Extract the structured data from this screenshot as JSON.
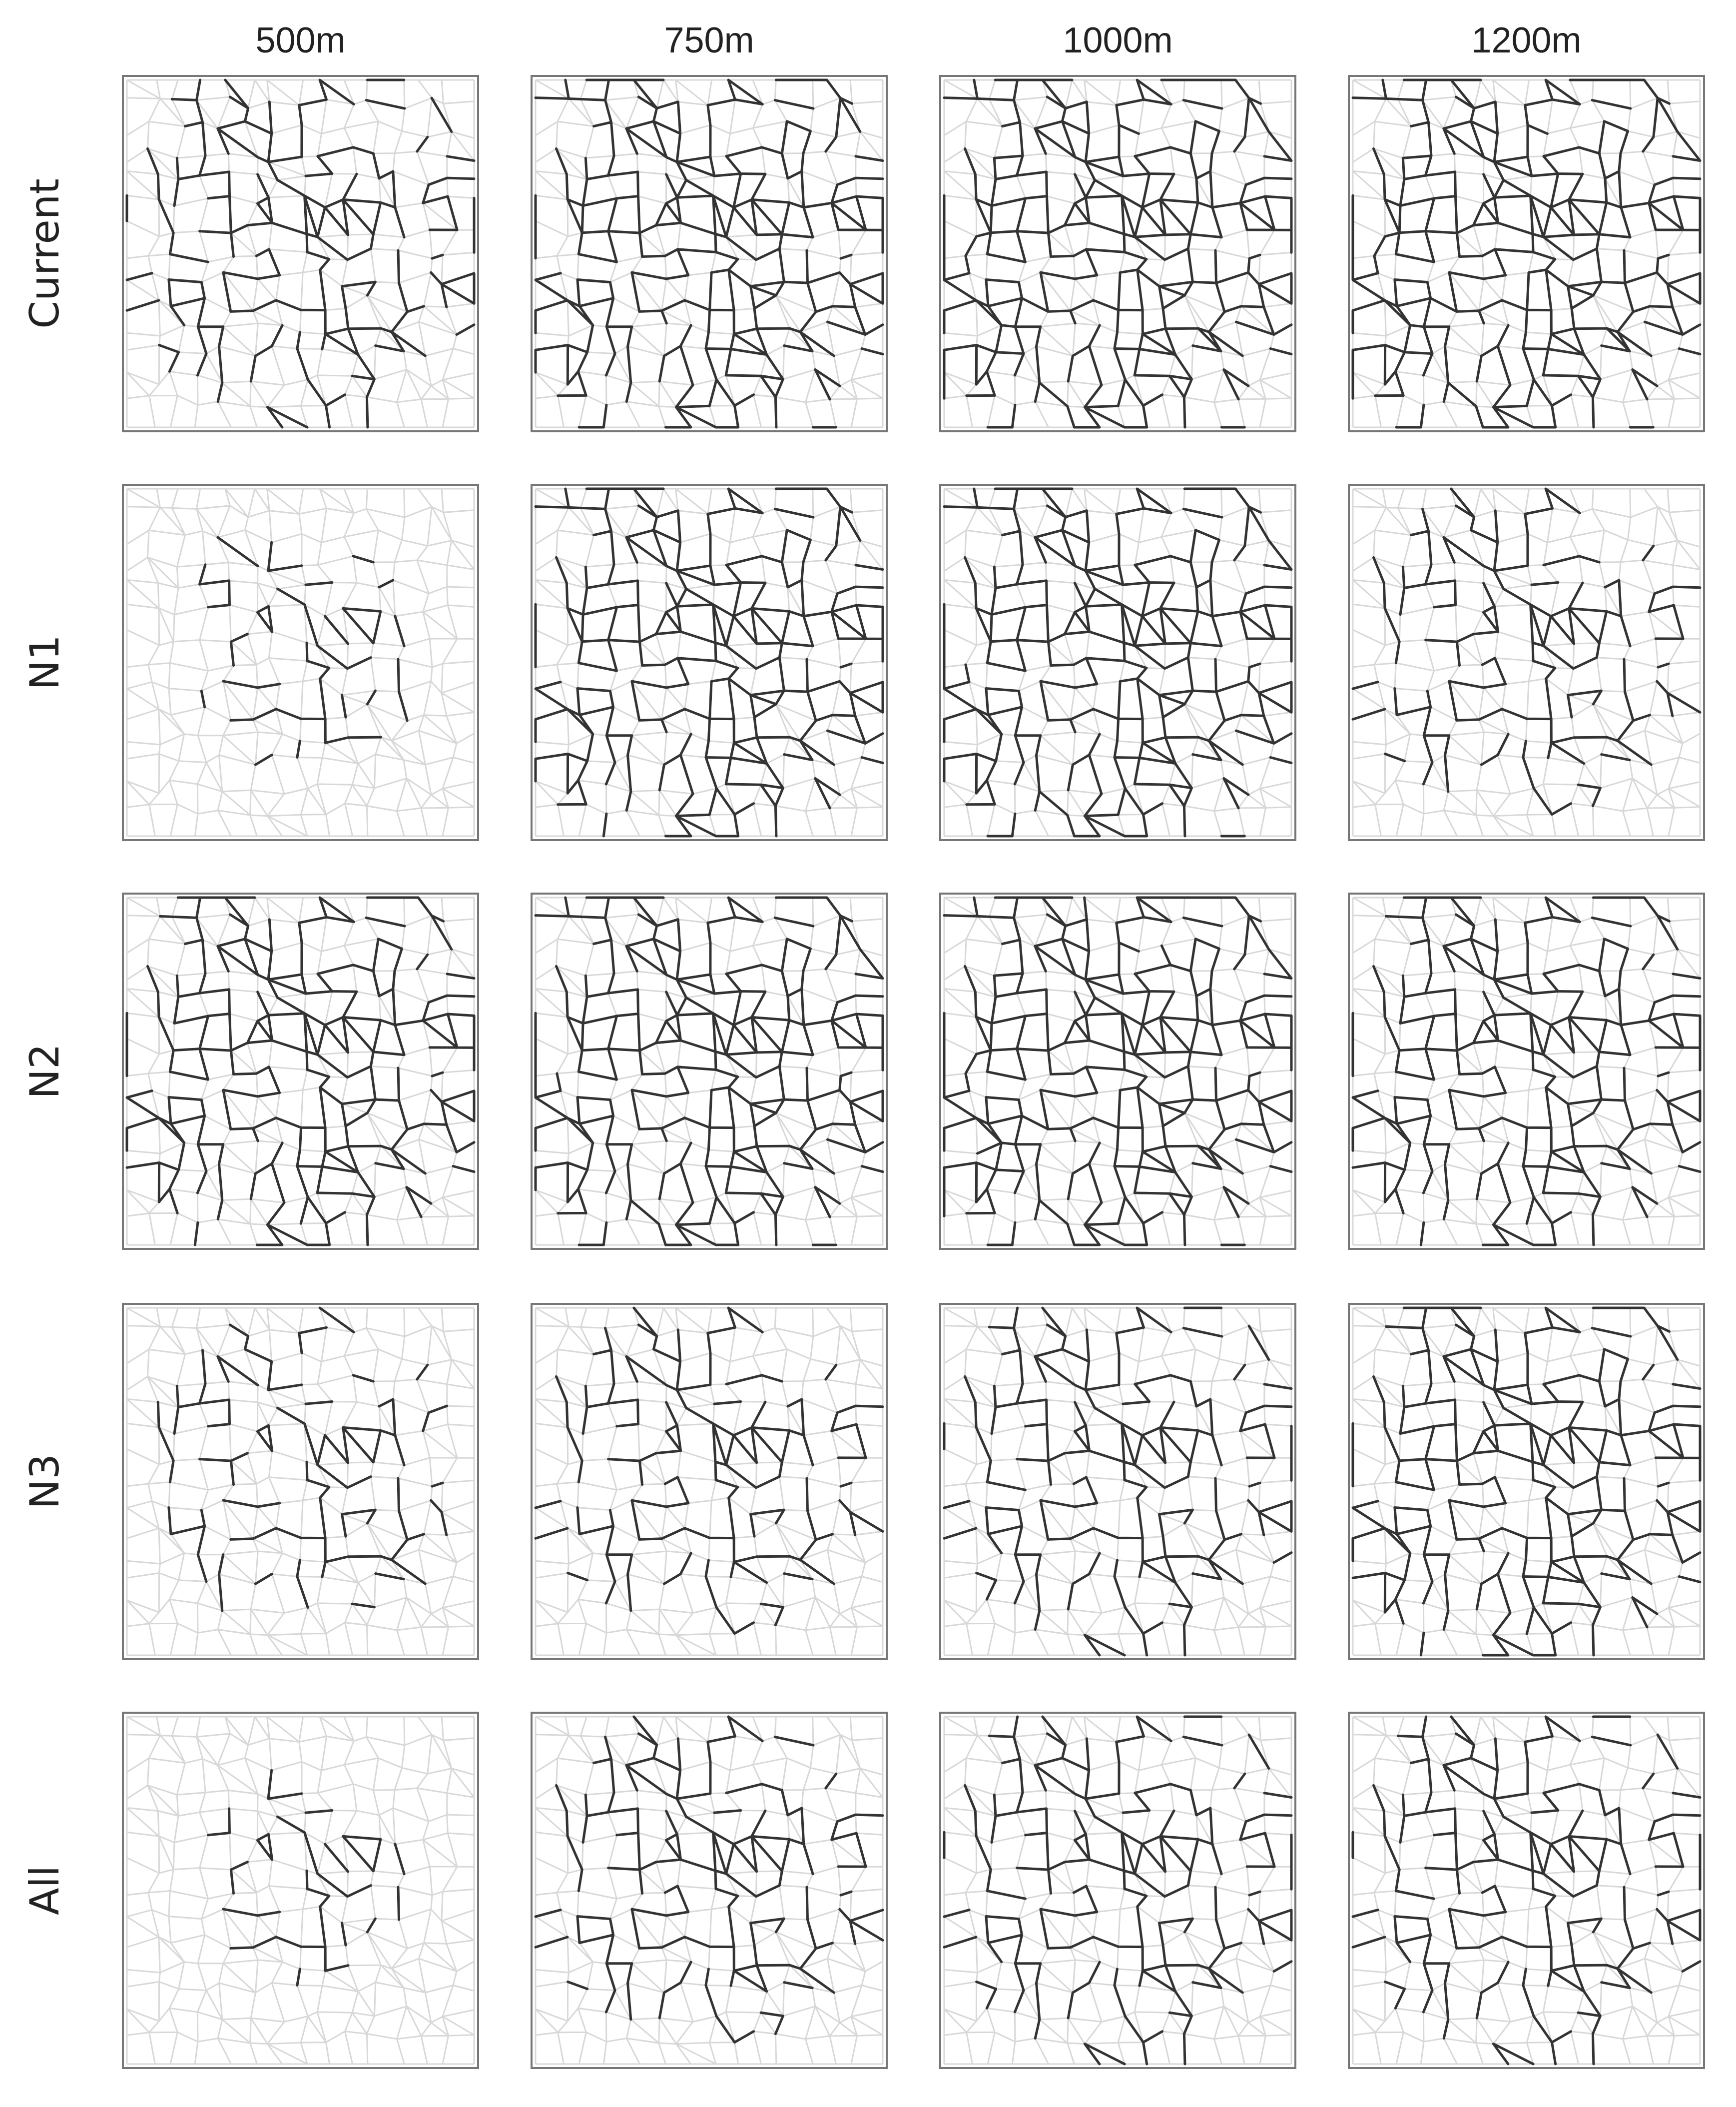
{
  "columns": [
    "500m",
    "750m",
    "1000m",
    "1200m"
  ],
  "rows": [
    "Current",
    "N1",
    "N2",
    "N3",
    "All"
  ]
}
